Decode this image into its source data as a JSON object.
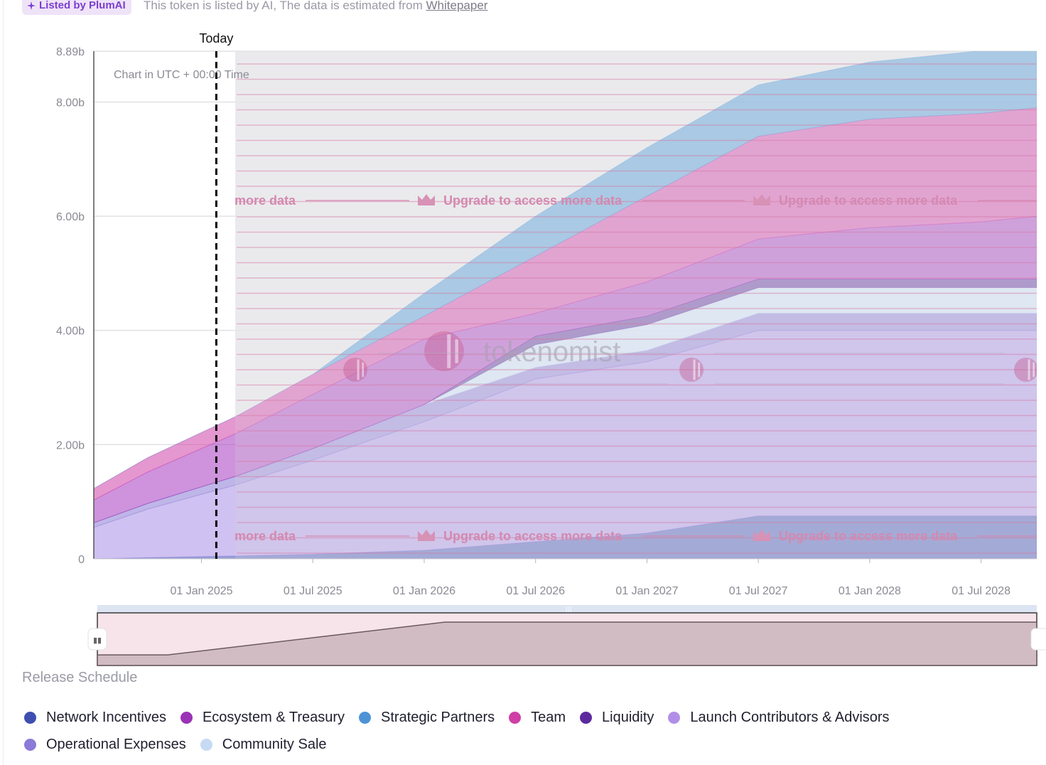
{
  "badge": {
    "label": "Listed by PlumAI"
  },
  "notice": {
    "text": "This token is listed by AI, The data is estimated from",
    "link": "Whitepaper"
  },
  "chart_data": {
    "type": "area",
    "stacked": true,
    "note": "Chart in UTC + 00:00 Time",
    "today_label": "Today",
    "y_ticks": [
      "0",
      "2.00b",
      "4.00b",
      "6.00b",
      "8.00b",
      "8.89b"
    ],
    "y_tick_values": [
      0,
      2.0,
      4.0,
      6.0,
      8.0,
      8.89
    ],
    "ylim": [
      0,
      8.89
    ],
    "x_tick_labels": [
      "01 Jan 2025",
      "01 Jul 2025",
      "01 Jan 2026",
      "01 Jul 2026",
      "01 Jan 2027",
      "01 Jul 2027",
      "01 Jan 2028",
      "01 Jul 2028"
    ],
    "x_tick_months": [
      12,
      18,
      24,
      30,
      36,
      42,
      48,
      54
    ],
    "xlim_months": [
      6.2,
      57
    ],
    "today_month": 12.8,
    "locked_from_month": 13.9,
    "x_months": [
      6.2,
      9.1,
      13.9,
      18,
      24,
      30,
      36,
      42,
      48,
      54,
      57
    ],
    "series": [
      {
        "name": "Network Incentives",
        "color": "#4150b4",
        "values": [
          0.0,
          0.02,
          0.05,
          0.08,
          0.15,
          0.3,
          0.45,
          0.75,
          0.75,
          0.75,
          0.75
        ]
      },
      {
        "name": "Launch Contributors & Advisors",
        "color": "#a88ee6",
        "values": [
          0.55,
          0.85,
          1.25,
          1.65,
          2.25,
          2.85,
          3.0,
          3.25,
          3.25,
          3.25,
          3.25
        ]
      },
      {
        "name": "Operational Expenses",
        "color": "#8a7ad6",
        "values": [
          0.08,
          0.1,
          0.15,
          0.2,
          0.3,
          0.2,
          0.2,
          0.3,
          0.3,
          0.3,
          0.3
        ]
      },
      {
        "name": "Community Sale",
        "color": "#c9dcf5",
        "values": [
          0.0,
          0.0,
          0.0,
          0.0,
          0.0,
          0.4,
          0.45,
          0.45,
          0.45,
          0.45,
          0.45
        ]
      },
      {
        "name": "Liquidity",
        "color": "#5b2c9b",
        "values": [
          0.0,
          0.0,
          0.0,
          0.0,
          0.0,
          0.15,
          0.15,
          0.15,
          0.15,
          0.15,
          0.15
        ]
      },
      {
        "name": "Ecosystem & Treasury",
        "color": "#a63bc0",
        "values": [
          0.4,
          0.55,
          0.75,
          0.95,
          1.15,
          0.4,
          0.6,
          0.7,
          0.9,
          1.0,
          1.1
        ]
      },
      {
        "name": "Team",
        "color": "#d042a8",
        "values": [
          0.2,
          0.25,
          0.3,
          0.35,
          0.4,
          1.0,
          1.5,
          1.8,
          1.9,
          1.9,
          1.9
        ]
      },
      {
        "name": "Strategic Partners",
        "color": "#4f97d6",
        "values": [
          0.0,
          0.0,
          0.0,
          0.0,
          0.4,
          0.7,
          0.85,
          0.9,
          1.0,
          1.1,
          1.1
        ]
      }
    ],
    "locked_text": "Upgrade to access more data",
    "locked_text_partial": "more data",
    "watermark": "tokenomist",
    "navigator": {
      "x_months": [
        6.2,
        10,
        25,
        57
      ],
      "values": [
        0.02,
        0.02,
        1.0,
        1.0
      ]
    }
  },
  "release_schedule": {
    "title": "Release Schedule"
  },
  "legend": {
    "rows": [
      [
        {
          "name": "Network Incentives",
          "color": "#3f4fb0"
        },
        {
          "name": "Ecosystem & Treasury",
          "color": "#9b33b6"
        },
        {
          "name": "Strategic Partners",
          "color": "#4d93d6"
        },
        {
          "name": "Team",
          "color": "#cf3fa6"
        },
        {
          "name": "Liquidity",
          "color": "#5d2a9e"
        },
        {
          "name": "Launch Contributors & Advisors",
          "color": "#b18fe8"
        }
      ],
      [
        {
          "name": "Operational Expenses",
          "color": "#8c7ad8"
        },
        {
          "name": "Community Sale",
          "color": "#c6daf4"
        }
      ]
    ]
  }
}
